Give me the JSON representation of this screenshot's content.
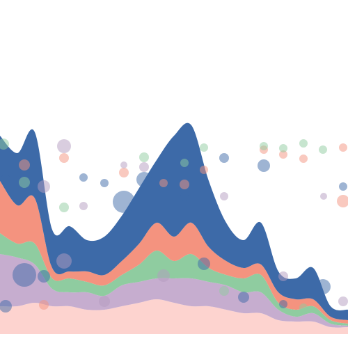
{
  "chart_data": [
    {
      "type": "area",
      "stacked": true,
      "x": [
        0,
        1,
        2,
        3,
        4,
        5,
        6,
        7,
        8,
        9,
        10,
        11,
        12,
        13,
        14,
        15,
        16,
        17,
        18,
        19,
        20
      ],
      "xlim": [
        0,
        20
      ],
      "ylim": [
        0,
        80
      ],
      "series": [
        {
          "color": "#fdd3cf",
          "values": [
            10,
            10,
            11.25,
            10,
            10,
            8.75,
            8.75,
            10,
            11.25,
            12.5,
            11.25,
            10,
            10,
            8.75,
            7.5,
            7.5,
            5,
            4.5,
            4.5,
            2.5,
            2.5
          ]
        },
        {
          "color": "#c6adcf",
          "values": [
            18.75,
            17.5,
            13.75,
            6.25,
            5,
            6.25,
            5,
            7.5,
            7.5,
            7.5,
            8.75,
            10,
            8.75,
            8.75,
            7.5,
            7.5,
            3.75,
            1.75,
            3,
            1.25,
            0.5
          ]
        },
        {
          "color": "#8fcca0",
          "values": [
            7.5,
            5,
            7.5,
            3.75,
            5,
            3.75,
            3.75,
            3.75,
            6.25,
            10,
            6.25,
            8.75,
            5,
            3.75,
            5,
            6.25,
            2.5,
            2.5,
            2.5,
            1.25,
            0.75
          ]
        },
        {
          "color": "#f4937f",
          "values": [
            18.75,
            13.75,
            16.25,
            3.75,
            2.5,
            3.75,
            3.75,
            5,
            7.5,
            10,
            8.75,
            11.25,
            7.5,
            5,
            3.75,
            3.75,
            3.75,
            3.75,
            2.5,
            1.25,
            1.25
          ]
        },
        {
          "color": "#3d6aa8",
          "values": [
            16.25,
            18.75,
            23.75,
            13.75,
            16.25,
            11.25,
            13.75,
            16.25,
            20,
            22.5,
            36.25,
            35,
            23.75,
            13.75,
            10,
            15,
            7.5,
            7.5,
            11.25,
            3.75,
            3.75
          ]
        }
      ]
    },
    {
      "type": "scatter",
      "xlim": [
        0,
        20
      ],
      "ylim": [
        0,
        80
      ],
      "opacity": 0.5,
      "series": [
        {
          "color": "#3d6aa8",
          "x": [
            0.32,
            4.8,
            6,
            7.12,
            8.28,
            10.6,
            12.88,
            15.16,
            19.72,
            1.4,
            2.52,
            0.32,
            11.72,
            14,
            16.28,
            18.56
          ],
          "values": [
            55.5,
            56.25,
            54.25,
            47.5,
            55.5,
            49.25,
            63.25,
            60.5,
            53,
            21.25,
            20.75,
            10,
            25.25,
            13.25,
            10.75,
            17
          ],
          "sizes": [
            7,
            6,
            6,
            16,
            11,
            6,
            7,
            9,
            6,
            17,
            9,
            9,
            9,
            8,
            6,
            11
          ]
        },
        {
          "color": "#f4937f",
          "x": [
            3.68,
            1.4,
            7.12,
            9.4,
            10.6,
            11.72,
            15.16,
            16.28,
            17.44,
            19.72,
            19.72,
            2.52
          ],
          "values": [
            63.25,
            60.75,
            58,
            54.25,
            53.75,
            59,
            66.25,
            64.5,
            63,
            67,
            47.75,
            10.5
          ],
          "sizes": [
            7,
            8,
            7,
            6,
            7,
            6,
            6,
            6,
            6,
            6,
            9,
            7
          ]
        },
        {
          "color": "#8fcca0",
          "x": [
            0.2,
            1.4,
            8.28,
            3.68,
            10.6,
            11.72,
            15.16,
            16.28,
            17.44,
            18.56,
            12.88,
            17.44
          ],
          "values": [
            68.25,
            54.5,
            63.5,
            45.5,
            61.5,
            67,
            67.5,
            66.75,
            68.5,
            66.25,
            15.5,
            9.5
          ],
          "sizes": [
            8,
            8,
            7,
            7,
            6,
            6,
            6,
            6,
            6,
            6,
            7,
            6
          ]
        },
        {
          "color": "#b39bc0",
          "x": [
            3.68,
            2.52,
            7.12,
            8.28,
            4.8,
            12.88,
            18.6,
            3.68,
            6,
            9.4,
            16.28,
            19.72
          ],
          "values": [
            67.5,
            53,
            60.75,
            60,
            46,
            49.5,
            49.5,
            26.25,
            11.75,
            21,
            20.75,
            11.75
          ],
          "sizes": [
            10,
            9,
            5,
            7,
            6,
            6,
            5,
            11,
            8,
            9,
            7,
            7
          ]
        }
      ]
    }
  ]
}
